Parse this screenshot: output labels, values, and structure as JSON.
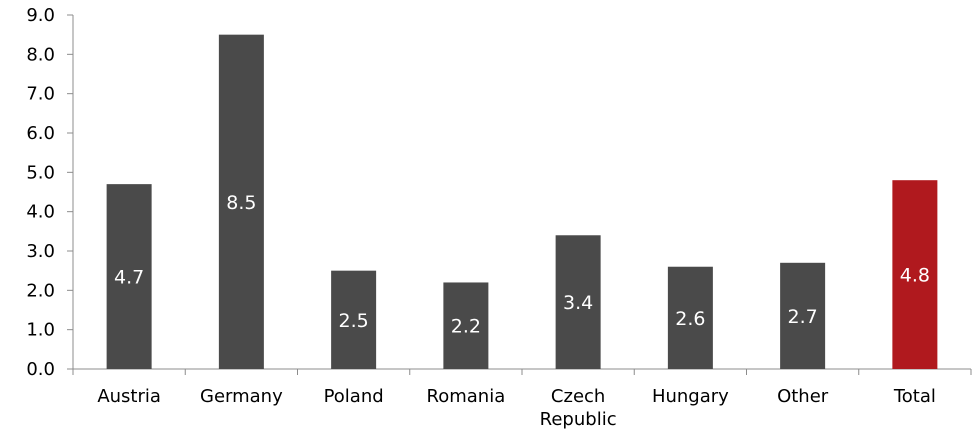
{
  "chart_data": {
    "type": "bar",
    "categories": [
      [
        "Austria"
      ],
      [
        "Germany"
      ],
      [
        "Poland"
      ],
      [
        "Romania"
      ],
      [
        "Czech",
        "Republic"
      ],
      [
        "Hungary"
      ],
      [
        "Other"
      ],
      [
        "Total"
      ]
    ],
    "values": [
      4.7,
      8.5,
      2.5,
      2.2,
      3.4,
      2.6,
      2.7,
      4.8
    ],
    "data_labels": [
      "4.7",
      "8.5",
      "2.5",
      "2.2",
      "3.4",
      "2.6",
      "2.7",
      "4.8"
    ],
    "yticks": [
      "0.0",
      "1.0",
      "2.0",
      "3.0",
      "4.0",
      "5.0",
      "6.0",
      "7.0",
      "8.0",
      "9.0"
    ],
    "ylim": [
      0,
      9
    ],
    "grid": false,
    "legend": "none",
    "colors": {
      "bar": "#4a4a4a",
      "highlight": "#b0191e",
      "axis": "#8c8c8c"
    },
    "highlight_index": 7
  }
}
